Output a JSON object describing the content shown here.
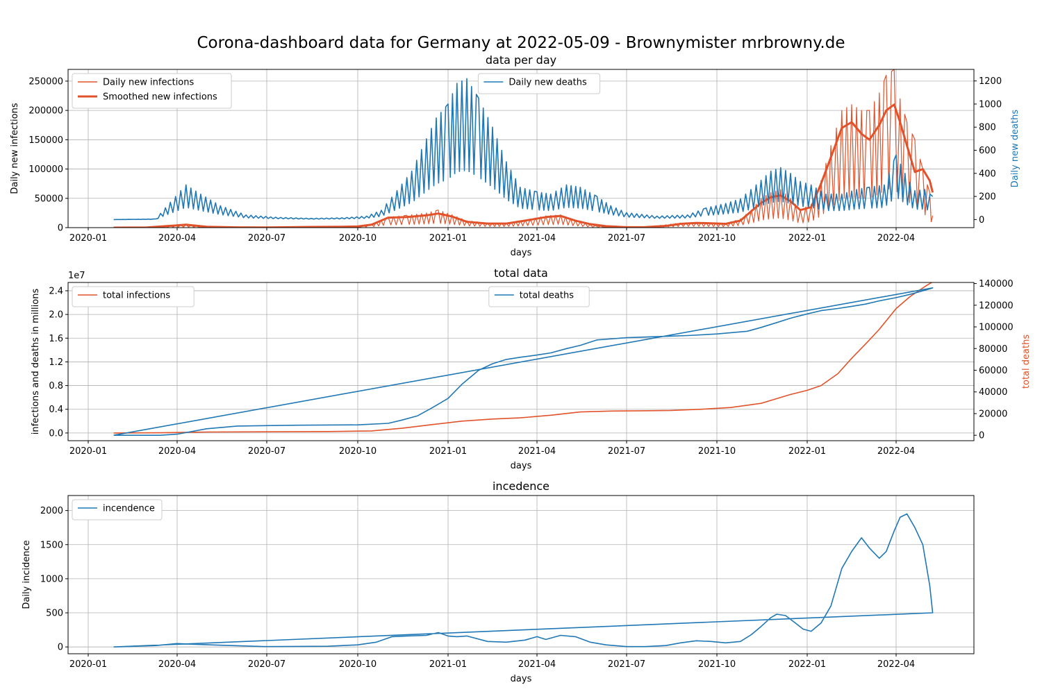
{
  "suptitle": "Corona-dashboard data for Germany at 2022-05-09 - Brownymister mrbrowny.de",
  "colors": {
    "infections": "#e1522a",
    "deaths": "#1f77b4",
    "grid": "#b0b0b0"
  },
  "x_ticks": [
    "2020-01",
    "2020-04",
    "2020-07",
    "2020-10",
    "2021-01",
    "2021-04",
    "2021-07",
    "2021-10",
    "2022-01",
    "2022-04"
  ],
  "chart_data": [
    {
      "type": "line",
      "title": "data per day",
      "xlabel": "days",
      "ylabel": "Daily new infections",
      "ylabel_right": "Daily new deaths",
      "ylim": [
        0,
        270000
      ],
      "ylim_right": [
        -70,
        1300
      ],
      "xlim": [
        "2019-12-30",
        "2022-06-12"
      ],
      "y_ticks": [
        "0",
        "50000",
        "100000",
        "150000",
        "200000",
        "250000"
      ],
      "y_ticks_right": [
        "0",
        "200",
        "400",
        "600",
        "800",
        "1000",
        "1200"
      ],
      "grid": true,
      "legends": [
        {
          "position": "upper-left",
          "entries": [
            "Daily new infections",
            "Smoothed new infections"
          ]
        },
        {
          "position": "upper-center",
          "entries": [
            "Daily new deaths"
          ]
        }
      ],
      "series": [
        {
          "name": "Daily new infections",
          "axis": "left",
          "style": "thin-oscillating",
          "color": "#e1522a",
          "x": [
            "2020-01-27",
            "2020-03-01",
            "2020-03-20",
            "2020-04-10",
            "2020-05-01",
            "2020-06-01",
            "2020-07-01",
            "2020-08-15",
            "2020-09-15",
            "2020-10-01",
            "2020-10-15",
            "2020-11-01",
            "2020-11-20",
            "2020-12-10",
            "2020-12-22",
            "2021-01-05",
            "2021-01-20",
            "2021-02-10",
            "2021-03-01",
            "2021-03-20",
            "2021-04-10",
            "2021-04-25",
            "2021-05-10",
            "2021-05-25",
            "2021-06-10",
            "2021-07-01",
            "2021-07-20",
            "2021-08-10",
            "2021-08-25",
            "2021-09-10",
            "2021-09-25",
            "2021-10-10",
            "2021-10-25",
            "2021-11-05",
            "2021-11-15",
            "2021-11-25",
            "2021-12-05",
            "2021-12-15",
            "2021-12-25",
            "2022-01-05",
            "2022-01-15",
            "2022-01-25",
            "2022-02-05",
            "2022-02-15",
            "2022-02-25",
            "2022-03-05",
            "2022-03-15",
            "2022-03-22",
            "2022-03-30",
            "2022-04-05",
            "2022-04-12",
            "2022-04-20",
            "2022-04-28",
            "2022-05-05",
            "2022-05-08"
          ],
          "y": [
            0,
            500,
            3000,
            5000,
            1500,
            500,
            400,
            1500,
            1800,
            2500,
            6000,
            18000,
            21000,
            25000,
            30000,
            22000,
            12000,
            8000,
            8000,
            13000,
            20000,
            22000,
            12000,
            5000,
            1500,
            700,
            1200,
            5000,
            8000,
            9000,
            8000,
            7000,
            15000,
            30000,
            50000,
            60000,
            65000,
            50000,
            30000,
            40000,
            80000,
            140000,
            200000,
            210000,
            200000,
            200000,
            230000,
            260000,
            270000,
            220000,
            180000,
            150000,
            100000,
            60000,
            20000
          ]
        },
        {
          "name": "Smoothed new infections",
          "axis": "left",
          "style": "thick",
          "color": "#e1522a",
          "x": [
            "2020-01-27",
            "2020-03-01",
            "2020-03-20",
            "2020-04-10",
            "2020-05-01",
            "2020-06-01",
            "2020-07-01",
            "2020-08-15",
            "2020-09-15",
            "2020-10-01",
            "2020-10-15",
            "2020-11-01",
            "2020-11-20",
            "2020-12-10",
            "2020-12-22",
            "2021-01-05",
            "2021-01-20",
            "2021-02-10",
            "2021-03-01",
            "2021-03-20",
            "2021-04-10",
            "2021-04-25",
            "2021-05-10",
            "2021-05-25",
            "2021-06-10",
            "2021-07-01",
            "2021-07-20",
            "2021-08-10",
            "2021-08-25",
            "2021-09-10",
            "2021-09-25",
            "2021-10-10",
            "2021-10-25",
            "2021-11-05",
            "2021-11-15",
            "2021-11-25",
            "2021-12-05",
            "2021-12-15",
            "2021-12-25",
            "2022-01-05",
            "2022-01-15",
            "2022-01-25",
            "2022-02-05",
            "2022-02-15",
            "2022-02-25",
            "2022-03-05",
            "2022-03-15",
            "2022-03-22",
            "2022-03-30",
            "2022-04-05",
            "2022-04-12",
            "2022-04-20",
            "2022-04-28",
            "2022-05-05",
            "2022-05-08"
          ],
          "y": [
            0,
            300,
            2500,
            5000,
            1500,
            500,
            400,
            1200,
            1500,
            2000,
            5000,
            17000,
            18000,
            21000,
            24000,
            19000,
            10000,
            7000,
            7000,
            12000,
            18000,
            20000,
            12000,
            6000,
            2500,
            700,
            800,
            3000,
            6500,
            8000,
            7500,
            6500,
            12000,
            28000,
            42000,
            52000,
            55000,
            45000,
            30000,
            35000,
            75000,
            120000,
            170000,
            180000,
            160000,
            150000,
            175000,
            200000,
            210000,
            180000,
            140000,
            95000,
            100000,
            80000,
            60000
          ]
        },
        {
          "name": "Daily new deaths",
          "axis": "right",
          "style": "thin-oscillating",
          "color": "#1f77b4",
          "x": [
            "2020-01-27",
            "2020-03-10",
            "2020-03-25",
            "2020-04-10",
            "2020-04-25",
            "2020-05-15",
            "2020-06-10",
            "2020-07-10",
            "2020-08-15",
            "2020-09-15",
            "2020-10-10",
            "2020-10-25",
            "2020-11-10",
            "2020-11-25",
            "2020-12-10",
            "2020-12-20",
            "2021-01-01",
            "2021-01-10",
            "2021-01-20",
            "2021-02-01",
            "2021-02-15",
            "2021-03-01",
            "2021-03-15",
            "2021-04-01",
            "2021-04-15",
            "2021-05-01",
            "2021-05-15",
            "2021-06-01",
            "2021-06-15",
            "2021-07-01",
            "2021-08-01",
            "2021-09-01",
            "2021-09-20",
            "2021-10-10",
            "2021-10-25",
            "2021-11-10",
            "2021-11-25",
            "2021-12-05",
            "2021-12-15",
            "2021-12-25",
            "2022-01-05",
            "2022-01-20",
            "2022-02-05",
            "2022-02-20",
            "2022-03-05",
            "2022-03-20",
            "2022-04-01",
            "2022-04-10",
            "2022-04-20",
            "2022-04-30",
            "2022-05-08"
          ],
          "y": [
            0,
            5,
            150,
            300,
            220,
            120,
            40,
            20,
            10,
            15,
            30,
            80,
            250,
            420,
            700,
            880,
            1000,
            1180,
            1220,
            1050,
            800,
            500,
            280,
            240,
            220,
            300,
            280,
            200,
            120,
            60,
            30,
            40,
            100,
            140,
            180,
            300,
            420,
            450,
            400,
            330,
            300,
            220,
            220,
            260,
            280,
            300,
            560,
            400,
            250,
            260,
            200
          ]
        }
      ]
    },
    {
      "type": "line",
      "title": "total data",
      "xlabel": "days",
      "ylabel": "infections and deaths in millions",
      "ylabel_right": "total deaths",
      "offset_text": "1e7",
      "ylim": [
        -0.13,
        2.54
      ],
      "ylim_right": [
        -5000,
        141000
      ],
      "xlim": [
        "2019-12-30",
        "2022-06-12"
      ],
      "y_ticks": [
        "0.0",
        "0.4",
        "0.8",
        "1.2",
        "1.6",
        "2.0",
        "2.4"
      ],
      "y_ticks_right": [
        "0",
        "20000",
        "40000",
        "60000",
        "80000",
        "100000",
        "120000",
        "140000"
      ],
      "grid": true,
      "legends": [
        {
          "position": "upper-left",
          "entries": [
            "total infections"
          ]
        },
        {
          "position": "upper-center",
          "entries": [
            "total deaths"
          ]
        }
      ],
      "series": [
        {
          "name": "total infections",
          "axis": "left",
          "color": "#e1522a",
          "x": [
            "2020-01-27",
            "2020-03-15",
            "2020-05-01",
            "2020-07-01",
            "2020-09-01",
            "2020-10-15",
            "2020-11-15",
            "2020-12-15",
            "2021-01-15",
            "2021-02-15",
            "2021-03-15",
            "2021-04-15",
            "2021-05-15",
            "2021-06-15",
            "2021-07-15",
            "2021-08-15",
            "2021-09-15",
            "2021-10-15",
            "2021-11-15",
            "2021-12-01",
            "2021-12-15",
            "2022-01-01",
            "2022-01-15",
            "2022-02-01",
            "2022-02-15",
            "2022-03-01",
            "2022-03-15",
            "2022-04-01",
            "2022-04-15",
            "2022-05-01",
            "2022-05-08"
          ],
          "y": [
            0,
            0.004,
            0.016,
            0.02,
            0.025,
            0.035,
            0.08,
            0.14,
            0.2,
            0.235,
            0.255,
            0.3,
            0.355,
            0.37,
            0.375,
            0.38,
            0.4,
            0.43,
            0.5,
            0.58,
            0.65,
            0.72,
            0.8,
            1.0,
            1.26,
            1.5,
            1.75,
            2.1,
            2.3,
            2.48,
            2.55
          ]
        },
        {
          "name": "total deaths",
          "axis": "right",
          "color": "#1f77b4",
          "x": [
            "2020-01-27",
            "2020-03-15",
            "2020-04-01",
            "2020-05-01",
            "2020-06-01",
            "2020-08-01",
            "2020-10-01",
            "2020-11-01",
            "2020-11-15",
            "2020-12-01",
            "2020-12-15",
            "2021-01-01",
            "2021-01-15",
            "2021-02-01",
            "2021-02-15",
            "2021-03-01",
            "2021-03-15",
            "2021-04-01",
            "2021-04-15",
            "2021-05-01",
            "2021-05-15",
            "2021-06-01",
            "2021-07-01",
            "2021-08-01",
            "2021-09-01",
            "2021-10-01",
            "2021-11-01",
            "2021-11-15",
            "2021-12-01",
            "2021-12-15",
            "2022-01-01",
            "2022-01-15",
            "2022-02-01",
            "2022-02-15",
            "2022-03-01",
            "2022-03-15",
            "2022-04-01",
            "2022-04-15",
            "2022-05-01",
            "2022-05-08",
            "2020-01-27"
          ],
          "y": [
            0,
            0,
            1000,
            6000,
            8500,
            9300,
            9600,
            11000,
            14000,
            18000,
            25000,
            34000,
            47000,
            60000,
            66000,
            70000,
            72000,
            74000,
            76000,
            80000,
            83000,
            88000,
            90000,
            91000,
            92000,
            93500,
            96000,
            99500,
            104000,
            108000,
            112000,
            115000,
            117000,
            119000,
            121000,
            124000,
            127000,
            130000,
            134000,
            136000,
            0
          ]
        }
      ]
    },
    {
      "type": "line",
      "title": "incedence",
      "xlabel": "days",
      "ylabel": "Daily incidence",
      "ylim": [
        -100,
        2220
      ],
      "xlim": [
        "2019-12-30",
        "2022-06-12"
      ],
      "y_ticks": [
        "0",
        "500",
        "1000",
        "1500",
        "2000"
      ],
      "grid": true,
      "legends": [
        {
          "position": "upper-left",
          "entries": [
            "incendence"
          ]
        }
      ],
      "series": [
        {
          "name": "incendence",
          "color": "#1f77b4",
          "x": [
            "2020-01-27",
            "2020-03-10",
            "2020-04-01",
            "2020-04-15",
            "2020-05-15",
            "2020-07-01",
            "2020-09-01",
            "2020-10-01",
            "2020-10-20",
            "2020-11-05",
            "2020-11-20",
            "2020-12-10",
            "2020-12-22",
            "2021-01-01",
            "2021-01-10",
            "2021-01-20",
            "2021-02-10",
            "2021-03-01",
            "2021-03-20",
            "2021-04-01",
            "2021-04-10",
            "2021-04-25",
            "2021-05-10",
            "2021-05-25",
            "2021-06-10",
            "2021-07-01",
            "2021-07-20",
            "2021-08-10",
            "2021-08-25",
            "2021-09-10",
            "2021-09-25",
            "2021-10-10",
            "2021-10-25",
            "2021-11-05",
            "2021-11-15",
            "2021-11-25",
            "2021-12-01",
            "2021-12-10",
            "2021-12-20",
            "2021-12-28",
            "2022-01-05",
            "2022-01-15",
            "2022-01-25",
            "2022-02-05",
            "2022-02-15",
            "2022-02-25",
            "2022-03-05",
            "2022-03-15",
            "2022-03-22",
            "2022-03-30",
            "2022-04-05",
            "2022-04-12",
            "2022-04-20",
            "2022-04-28",
            "2022-05-05",
            "2022-05-08",
            "2020-01-27"
          ],
          "y": [
            0,
            20,
            50,
            40,
            25,
            5,
            10,
            30,
            70,
            150,
            160,
            170,
            210,
            160,
            150,
            160,
            80,
            70,
            100,
            150,
            110,
            170,
            150,
            70,
            30,
            5,
            5,
            20,
            60,
            90,
            80,
            60,
            80,
            180,
            300,
            430,
            480,
            460,
            350,
            260,
            230,
            350,
            600,
            1150,
            1400,
            1600,
            1450,
            1300,
            1400,
            1700,
            1900,
            1950,
            1750,
            1500,
            900,
            500,
            0
          ]
        }
      ]
    }
  ]
}
